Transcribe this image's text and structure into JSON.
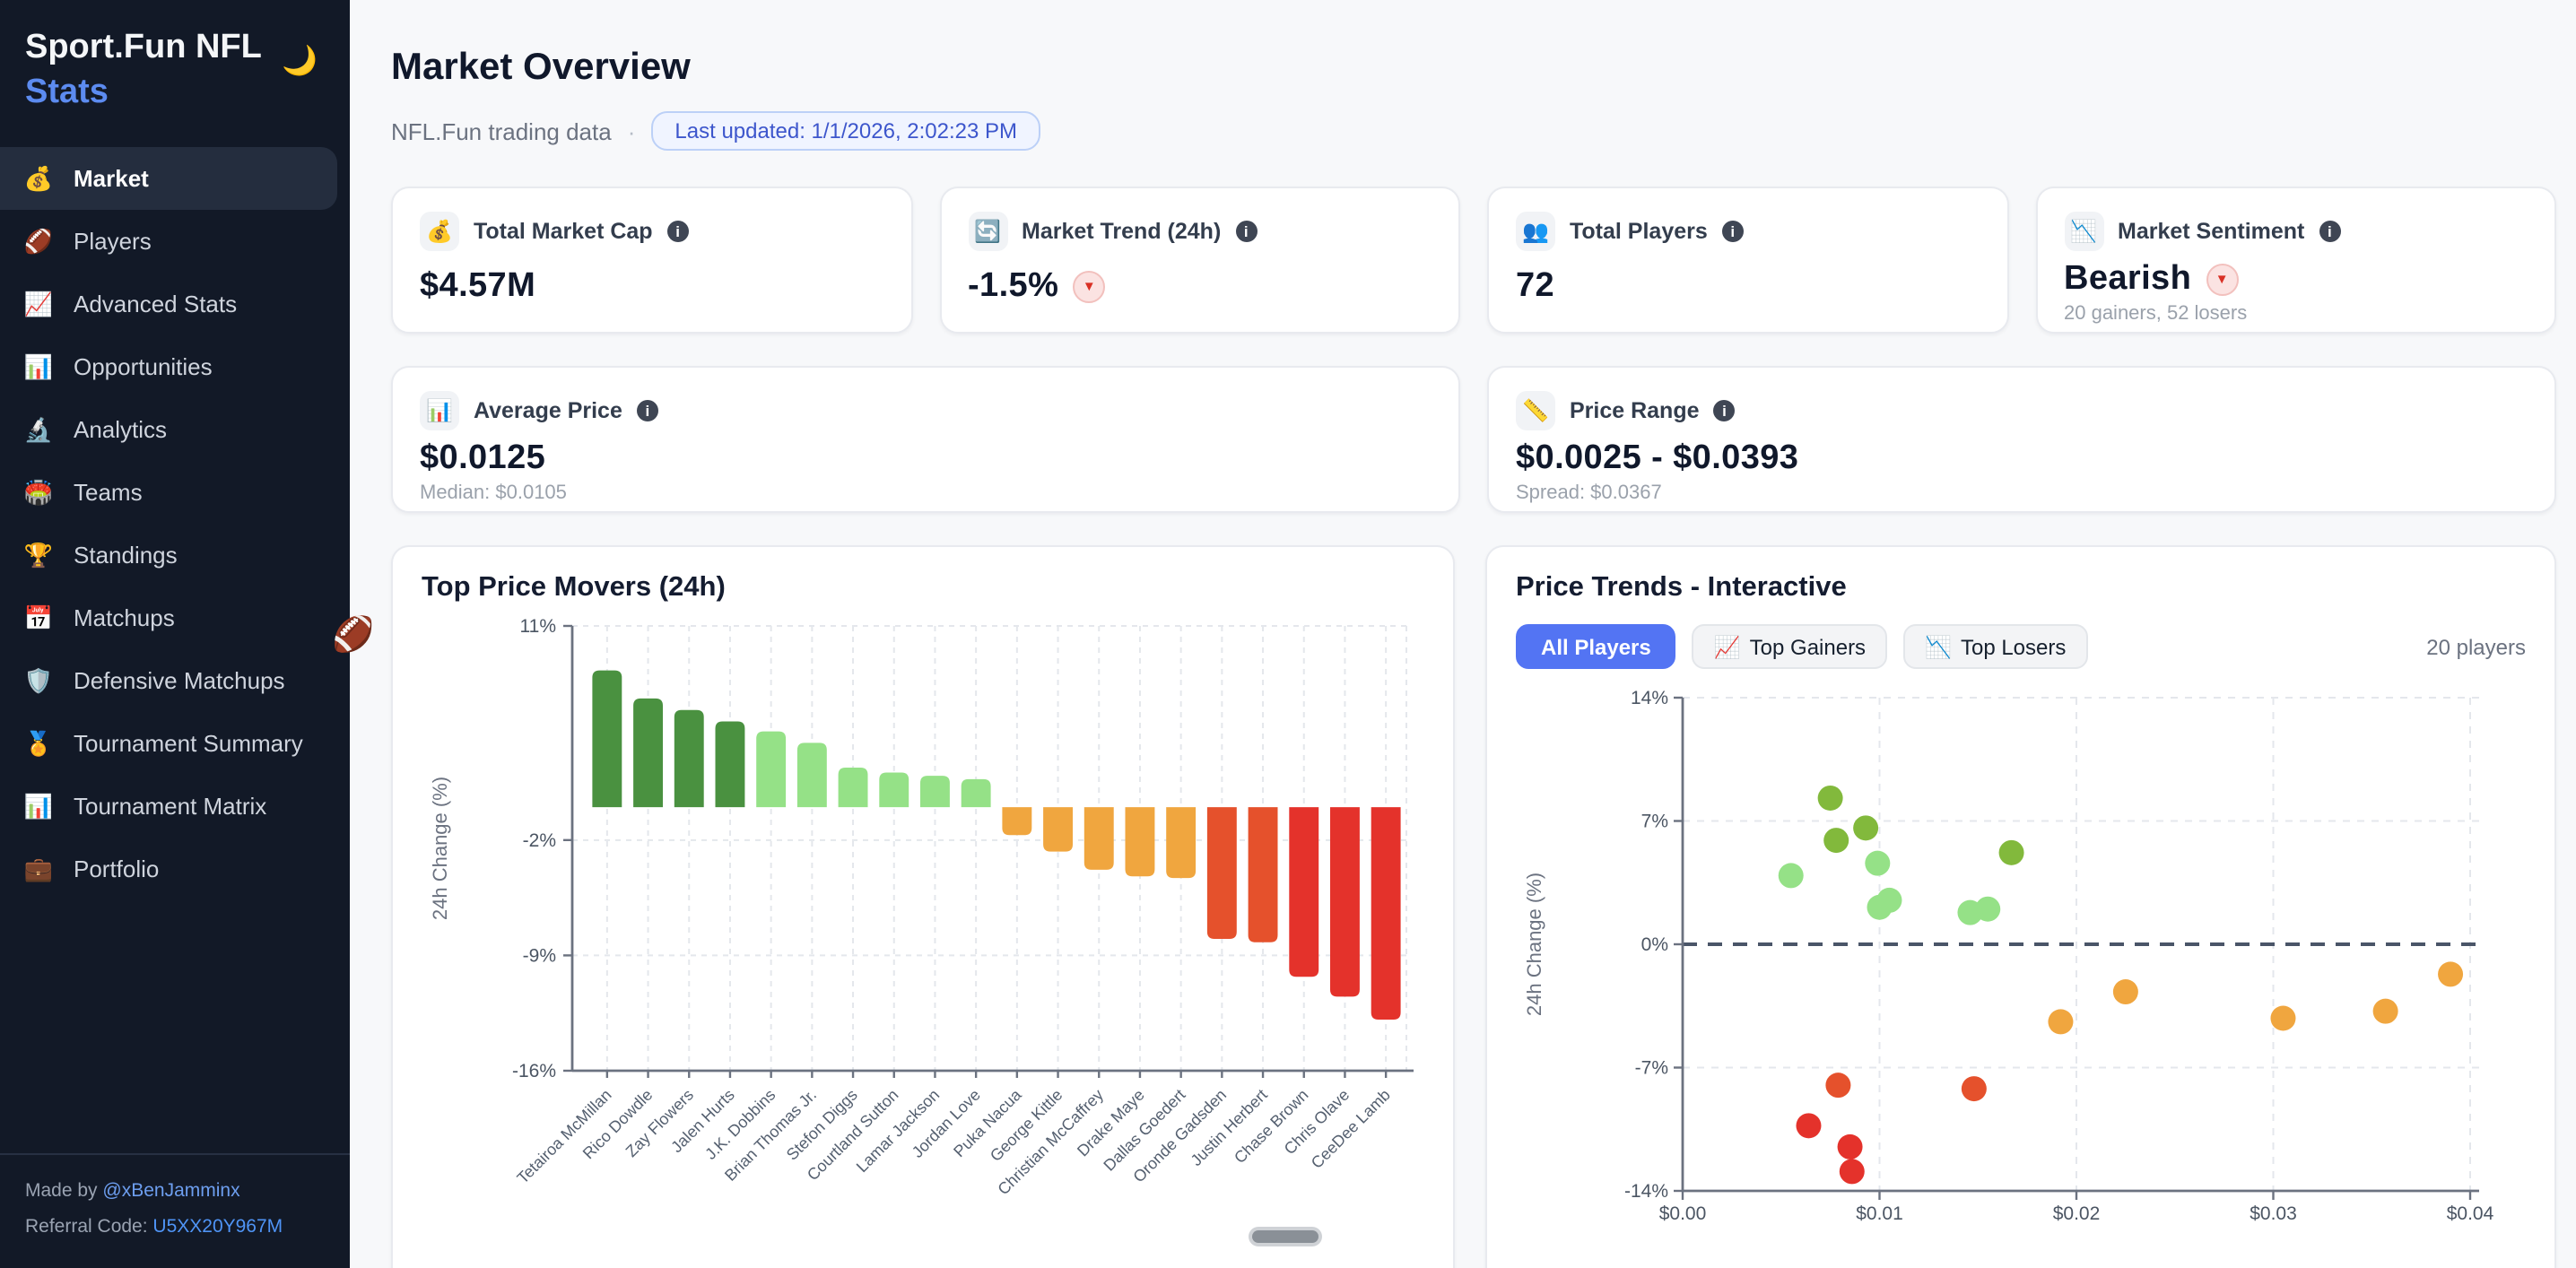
{
  "colors": {
    "accent_blue": "#5374f3",
    "link_blue": "#5c8bf0",
    "badge_text_blue": "#3d56cc",
    "sidebar_bg": "#121927",
    "sidebar_active_bg": "#242d3e",
    "negative_red": "#d93025"
  },
  "palette": {
    "dark_green": "#4a9140",
    "scatter_dark_green": "#82b93c",
    "light_green": "#95e187",
    "orange": "#f0a63f",
    "red_orange": "#e5512c",
    "red": "#e4322b",
    "zero_line": "#4a5568",
    "grid": "#e4e7ec",
    "axis": "#6b7280",
    "tick_text": "#4b5563",
    "label_text": "#556070"
  },
  "icons": {
    "info": "i",
    "down_triangle": "▼",
    "moon": "🌙",
    "football_float": "🏈"
  },
  "sidebar": {
    "logo_line1": "Sport.Fun NFL",
    "logo_line2": "Stats",
    "items": [
      {
        "icon": "💰",
        "label": "Market",
        "active": true
      },
      {
        "icon": "🏈",
        "label": "Players",
        "active": false
      },
      {
        "icon": "📈",
        "label": "Advanced Stats",
        "active": false
      },
      {
        "icon": "📊",
        "label": "Opportunities",
        "active": false
      },
      {
        "icon": "🔬",
        "label": "Analytics",
        "active": false
      },
      {
        "icon": "🏟️",
        "label": "Teams",
        "active": false
      },
      {
        "icon": "🏆",
        "label": "Standings",
        "active": false
      },
      {
        "icon": "📅",
        "label": "Matchups",
        "active": false
      },
      {
        "icon": "🛡️",
        "label": "Defensive Matchups",
        "active": false
      },
      {
        "icon": "🏅",
        "label": "Tournament Summary",
        "active": false
      },
      {
        "icon": "📊",
        "label": "Tournament Matrix",
        "active": false
      },
      {
        "icon": "💼",
        "label": "Portfolio",
        "active": false
      }
    ],
    "footer": {
      "made_by_prefix": "Made by ",
      "made_by_link": "@xBenJamminx",
      "referral_prefix": "Referral Code: ",
      "referral_code": "U5XX20Y967M"
    }
  },
  "header": {
    "title": "Market Overview",
    "subtitle": "NFL.Fun trading data",
    "separator": "·",
    "last_updated_badge": "Last updated: 1/1/2026, 2:02:23 PM"
  },
  "stat_cards": [
    {
      "icon": "💰",
      "label": "Total Market Cap",
      "value": "$4.57M"
    },
    {
      "icon": "🔄",
      "label": "Market Trend (24h)",
      "value": "-1.5%",
      "badge": "down"
    },
    {
      "icon": "👥",
      "label": "Total Players",
      "value": "72"
    },
    {
      "icon": "📉",
      "label": "Market Sentiment",
      "value": "Bearish",
      "badge": "down",
      "sub": "20 gainers, 52 losers"
    },
    {
      "icon": "📊",
      "label": "Average Price",
      "value": "$0.0125",
      "sub": "Median: $0.0105"
    },
    {
      "icon": "📏",
      "label": "Price Range",
      "value": "$0.0025 - $0.0393",
      "sub": "Spread: $0.0367"
    }
  ],
  "trends_card": {
    "controls": [
      {
        "icon": "",
        "label": "All Players",
        "active": true
      },
      {
        "icon": "📈",
        "label": "Top Gainers",
        "active": false
      },
      {
        "icon": "📉",
        "label": "Top Losers",
        "active": false
      }
    ],
    "players_count": "20 players"
  },
  "chart_data": [
    {
      "type": "bar",
      "title": "Top Price Movers (24h)",
      "xlabel": "",
      "ylabel": "24h Change (%)",
      "ylim": [
        -16,
        11
      ],
      "yticks": [
        11,
        -2,
        -9,
        -16
      ],
      "grid": true,
      "categories": [
        "Tetairoa McMillan",
        "Rico Dowdle",
        "Zay Flowers",
        "Jalen Hurts",
        "J.K. Dobbins",
        "Brian Thomas Jr.",
        "Stefon Diggs",
        "Courtland Sutton",
        "Lamar Jackson",
        "Jordan Love",
        "Puka Nacua",
        "George Kittle",
        "Christian McCaffrey",
        "Drake Maye",
        "Dallas Goedert",
        "Oronde Gadsden",
        "Justin Herbert",
        "Chase Brown",
        "Chris Olave",
        "CeeDee Lamb"
      ],
      "values": [
        8.3,
        6.6,
        5.9,
        5.2,
        4.6,
        3.9,
        2.4,
        2.1,
        1.9,
        1.7,
        -1.7,
        -2.7,
        -3.8,
        -4.2,
        -4.3,
        -8.0,
        -8.2,
        -10.3,
        -11.5,
        -12.9
      ]
    },
    {
      "type": "scatter",
      "title": "Price Trends - Interactive",
      "xlabel": "",
      "ylabel": "24h Change (%)",
      "xlim": [
        0,
        0.04
      ],
      "ylim": [
        -14,
        14
      ],
      "yticks": [
        14,
        7,
        0,
        -7,
        -14
      ],
      "xtick_values": [
        0,
        0.01,
        0.02,
        0.03,
        0.04
      ],
      "xtick_labels": [
        "$0.00",
        "$0.01",
        "$0.02",
        "$0.03",
        "$0.04"
      ],
      "zero_line": true,
      "grid": true,
      "points": [
        {
          "x": 0.0075,
          "y": 8.3
        },
        {
          "x": 0.0093,
          "y": 6.6
        },
        {
          "x": 0.0078,
          "y": 5.9
        },
        {
          "x": 0.0167,
          "y": 5.2
        },
        {
          "x": 0.0099,
          "y": 4.6
        },
        {
          "x": 0.0055,
          "y": 3.9
        },
        {
          "x": 0.0105,
          "y": 2.5
        },
        {
          "x": 0.01,
          "y": 2.1
        },
        {
          "x": 0.0155,
          "y": 2.0
        },
        {
          "x": 0.0146,
          "y": 1.8
        },
        {
          "x": 0.039,
          "y": -1.7
        },
        {
          "x": 0.0225,
          "y": -2.7
        },
        {
          "x": 0.0357,
          "y": -3.8
        },
        {
          "x": 0.0305,
          "y": -4.2
        },
        {
          "x": 0.0192,
          "y": -4.4
        },
        {
          "x": 0.0079,
          "y": -8.0
        },
        {
          "x": 0.0148,
          "y": -8.2
        },
        {
          "x": 0.0064,
          "y": -10.3
        },
        {
          "x": 0.0085,
          "y": -11.5
        },
        {
          "x": 0.0086,
          "y": -12.9
        }
      ]
    }
  ]
}
